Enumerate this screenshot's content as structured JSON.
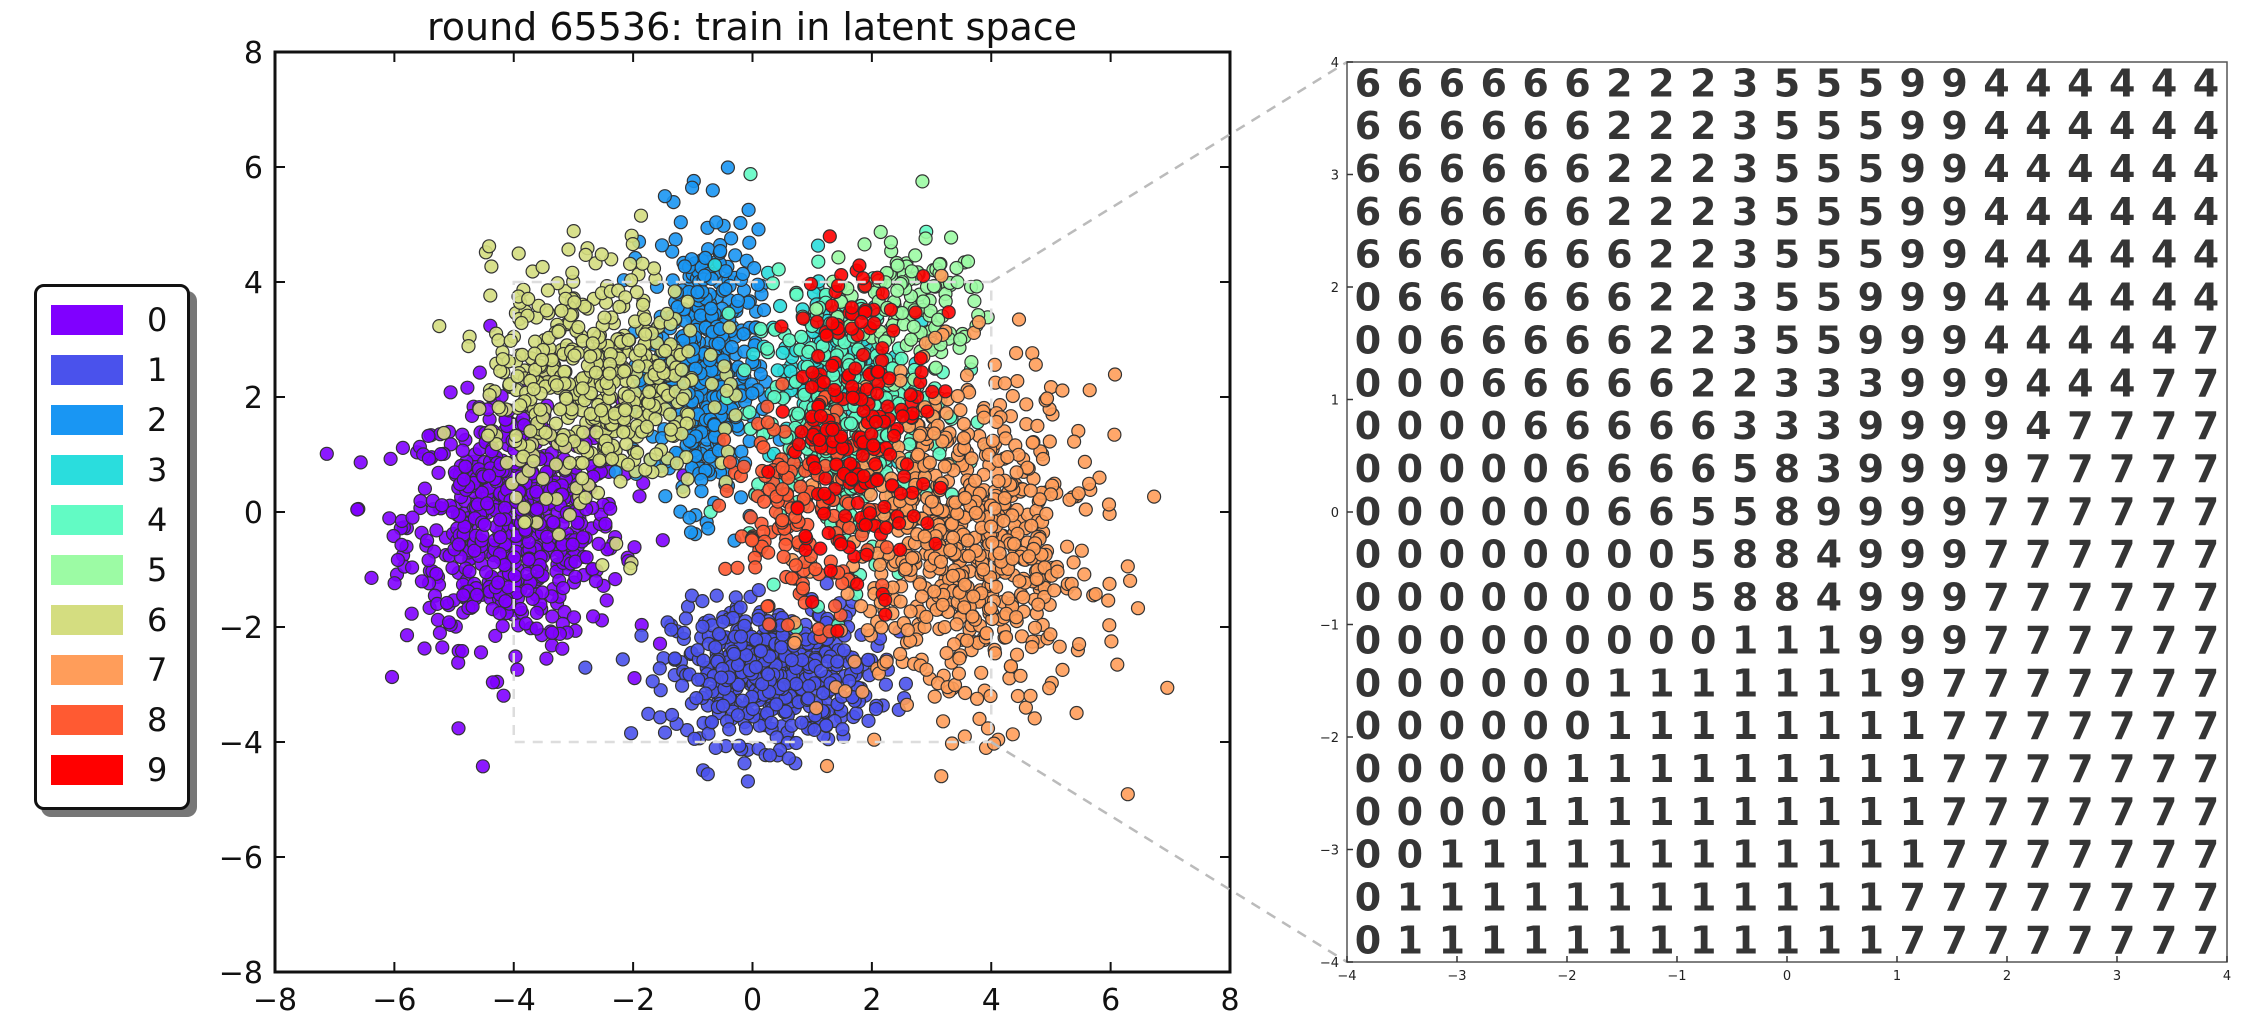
{
  "chart_data": [
    {
      "type": "scatter",
      "title": "round 65536: train in latent space",
      "xlabel": "",
      "ylabel": "",
      "xlim": [
        -8,
        8
      ],
      "ylim": [
        -8,
        8
      ],
      "xticks": [
        "−8",
        "−6",
        "−4",
        "−2",
        "0",
        "2",
        "4",
        "6",
        "8"
      ],
      "yticks": [
        "8",
        "6",
        "4",
        "2",
        "0",
        "−2",
        "−4",
        "−6",
        "−8"
      ],
      "grid": false,
      "legend_position": "left outside",
      "zoom_region": {
        "x": [
          -4,
          4
        ],
        "y": [
          -4,
          4
        ]
      },
      "series": [
        {
          "name": "0",
          "color": "#8000ff",
          "center": [
            -4.0,
            -0.2
          ],
          "spread": [
            1.2,
            1.4
          ],
          "count": 700
        },
        {
          "name": "1",
          "color": "#4a52ec",
          "center": [
            0.3,
            -2.8
          ],
          "spread": [
            1.1,
            0.8
          ],
          "count": 550
        },
        {
          "name": "2",
          "color": "#1996f3",
          "center": [
            -0.8,
            2.5
          ],
          "spread": [
            0.6,
            1.6
          ],
          "count": 450
        },
        {
          "name": "3",
          "color": "#2adddd",
          "center": [
            1.4,
            2.4
          ],
          "spread": [
            0.8,
            1.2
          ],
          "count": 180
        },
        {
          "name": "4",
          "color": "#62fbc4",
          "center": [
            1.6,
            1.6
          ],
          "spread": [
            1.1,
            1.6
          ],
          "count": 320
        },
        {
          "name": "5",
          "color": "#9cfba4",
          "center": [
            2.6,
            3.6
          ],
          "spread": [
            0.9,
            0.8
          ],
          "count": 120
        },
        {
          "name": "6",
          "color": "#d4dd80",
          "center": [
            -2.6,
            2.3
          ],
          "spread": [
            1.2,
            1.4
          ],
          "count": 500
        },
        {
          "name": "7",
          "color": "#ff9d5a",
          "center": [
            3.6,
            -0.6
          ],
          "spread": [
            1.4,
            1.9
          ],
          "count": 700
        },
        {
          "name": "8",
          "color": "#ff5a32",
          "center": [
            0.8,
            0.0
          ],
          "spread": [
            0.8,
            1.2
          ],
          "count": 150
        },
        {
          "name": "9",
          "color": "#ff0000",
          "center": [
            1.8,
            1.6
          ],
          "spread": [
            0.8,
            1.8
          ],
          "count": 200
        }
      ]
    },
    {
      "type": "heatmap",
      "title": "",
      "xlim": [
        -4,
        4
      ],
      "ylim": [
        -4,
        4
      ],
      "xticks": [
        "−4",
        "−3",
        "−2",
        "−1",
        "0",
        "1",
        "2",
        "3",
        "4"
      ],
      "yticks": [
        "4",
        "3",
        "2",
        "1",
        "0",
        "−1",
        "−2",
        "−3",
        "−4"
      ],
      "grid_digits": [
        "666666222355599444444",
        "666666222355599444444",
        "666666222355599444444",
        "666666222355599444444",
        "666666622355599444444",
        "066666622355999444444",
        "006666622355999444447",
        "000666662233399944477",
        "000066666333999947777",
        "000006666583999977777",
        "000000665589999777777",
        "000000005884999777777",
        "000000005884999777777",
        "000000000111999777777",
        "000000111111197777777",
        "000000111111117777777",
        "000001111111117777777",
        "000011111111117777777",
        "001111111111117777777",
        "011111111111177777777",
        "011111111111177777777"
      ]
    }
  ]
}
